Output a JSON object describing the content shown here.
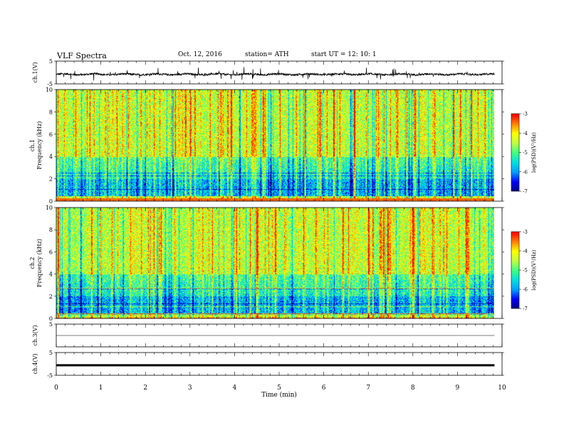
{
  "header": {
    "title": "VLF  Spectra",
    "date": "Oct. 12, 2016",
    "station": "station= ATH",
    "start": "start  UT  =    12: 10: 1"
  },
  "colors": {
    "colormap": [
      "#000080",
      "#0000ff",
      "#00a0ff",
      "#00e0e0",
      "#40ff80",
      "#c0ff40",
      "#ffff00",
      "#ff8000",
      "#ff0000",
      "#ffffff"
    ],
    "trace": "#000000"
  },
  "chart_data": [
    {
      "type": "line",
      "panel": "ch1-waveform",
      "ylabel": "ch.1(V)",
      "ylim": [
        -5,
        5
      ],
      "yticks": [
        "5",
        "-5"
      ],
      "xlim": [
        0,
        10
      ],
      "baseline": -0.8,
      "amplitude_range": [
        -2.5,
        0.8
      ]
    },
    {
      "type": "heatmap",
      "panel": "ch1-spectrogram",
      "ylabel": "ch.1\nFrequency  (kHz)",
      "ylim": [
        0,
        10
      ],
      "yticks": [
        "0",
        "2",
        "4",
        "6",
        "8",
        "10"
      ],
      "xlim": [
        0,
        9.83
      ],
      "colorbar": {
        "label": "log(PSD)(V²/Hz)",
        "range": [
          -7,
          -3
        ],
        "ticks": [
          "-3",
          "-4",
          "-5",
          "-6",
          "-7"
        ]
      }
    },
    {
      "type": "heatmap",
      "panel": "ch2-spectrogram",
      "ylabel": "ch.2\nFrequency  (kHz)",
      "ylim": [
        0,
        10
      ],
      "yticks": [
        "0",
        "2",
        "4",
        "6",
        "8",
        "10"
      ],
      "xlim": [
        0,
        9.83
      ],
      "colorbar": {
        "label": "log(PSD)(V²/Hz)",
        "range": [
          -7,
          -3
        ],
        "ticks": [
          "-3",
          "-4",
          "-5",
          "-6",
          "-7"
        ]
      }
    },
    {
      "type": "line",
      "panel": "ch3-waveform",
      "ylabel": "ch.3(V)",
      "ylim": [
        -5,
        5
      ],
      "yticks": [
        "5"
      ],
      "xlim": [
        0,
        10
      ],
      "baseline": 0.0
    },
    {
      "type": "line",
      "panel": "ch4-waveform",
      "ylabel": "ch.4(V)",
      "ylim": [
        -5,
        5
      ],
      "yticks": [
        "5",
        "-5"
      ],
      "xlim": [
        0,
        10
      ],
      "baseline": -0.6
    }
  ],
  "xaxis": {
    "label": "Time  (min)",
    "ticks": [
      "0",
      "1",
      "2",
      "3",
      "4",
      "5",
      "6",
      "7",
      "8",
      "9",
      "10"
    ]
  }
}
